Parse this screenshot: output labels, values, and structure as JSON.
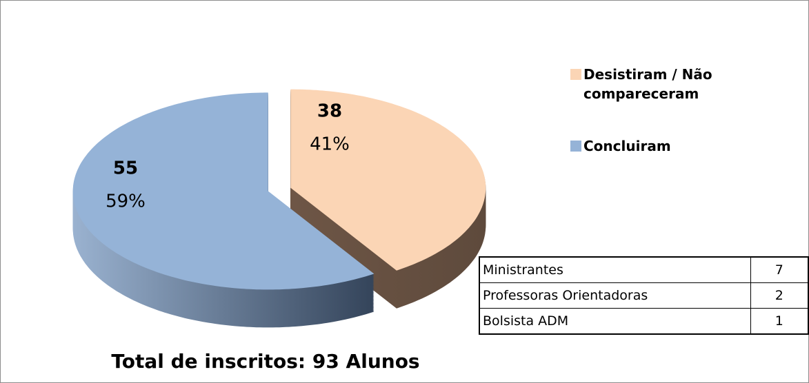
{
  "chart_data": {
    "type": "pie",
    "categories": [
      "Desistiram / Não compareceram",
      "Concluiram"
    ],
    "values": [
      38,
      55
    ],
    "percent_labels": [
      "41%",
      "59%"
    ],
    "colors": [
      "#fbd5b5",
      "#95b3d7"
    ],
    "legend": "right",
    "annotation": "Total de inscritos: 93 Alunos"
  },
  "table": {
    "rows": [
      [
        "Ministrantes",
        "7"
      ],
      [
        "Professoras Orientadoras",
        "2"
      ],
      [
        "Bolsista ADM",
        "1"
      ]
    ]
  }
}
